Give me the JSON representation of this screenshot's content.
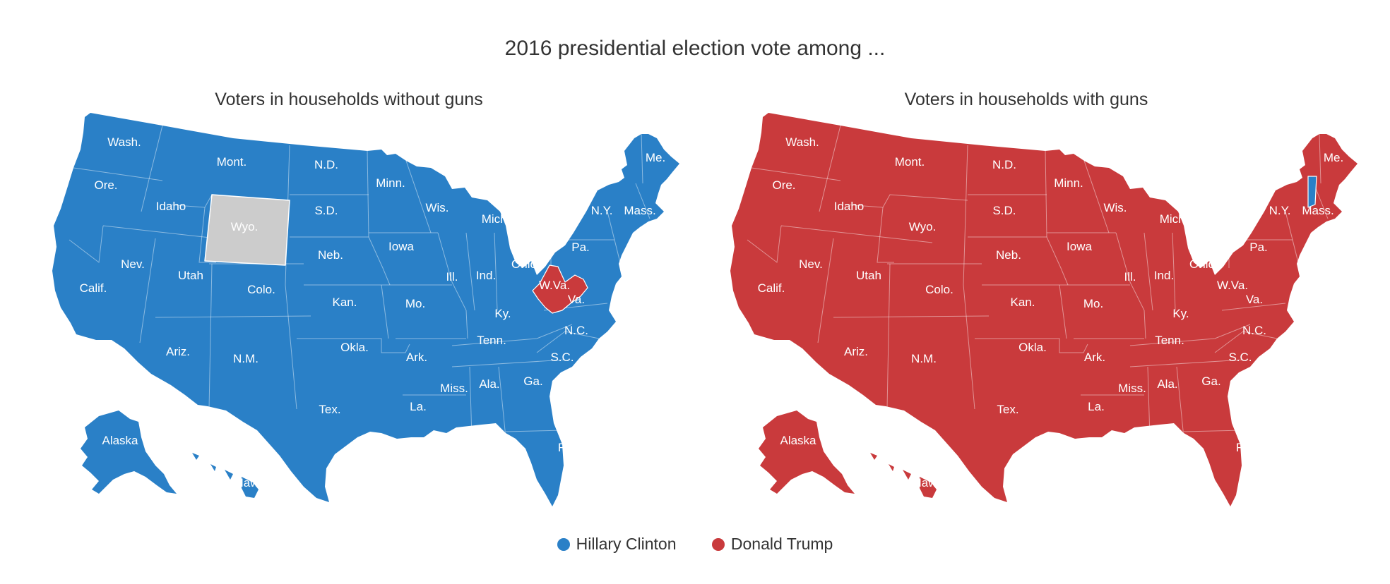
{
  "title": "2016 presidential election vote among ...",
  "maps": [
    {
      "title": "Voters in households without guns",
      "base_winner": "Hillary Clinton",
      "exceptions": {
        "Wyo.": "no data",
        "W.Va.": "Donald Trump"
      }
    },
    {
      "title": "Voters in households with guns",
      "base_winner": "Donald Trump",
      "exceptions": {
        "Vt.": "Hillary Clinton"
      }
    }
  ],
  "state_labels": [
    "Wash.",
    "Ore.",
    "Calif.",
    "Nev.",
    "Idaho",
    "Mont.",
    "Wyo.",
    "Utah",
    "Ariz.",
    "Colo.",
    "N.M.",
    "N.D.",
    "S.D.",
    "Neb.",
    "Kan.",
    "Okla.",
    "Tex.",
    "Minn.",
    "Iowa",
    "Mo.",
    "Ark.",
    "La.",
    "Wis.",
    "Ill.",
    "Mich.",
    "Ind.",
    "Ohio",
    "Ky.",
    "Tenn.",
    "Miss.",
    "Ala.",
    "Ga.",
    "Fla.",
    "S.C.",
    "N.C.",
    "Va.",
    "W.Va.",
    "Pa.",
    "N.Y.",
    "Mass.",
    "Me.",
    "Alaska",
    "Hawaii"
  ],
  "legend": [
    {
      "label": "Hillary Clinton",
      "color": "#2a80c7"
    },
    {
      "label": "Donald Trump",
      "color": "#c93a3c"
    }
  ],
  "colors": {
    "clinton": "#2a80c7",
    "trump": "#c93a3c",
    "no_data": "#cccccc",
    "border": "#ffffff"
  }
}
